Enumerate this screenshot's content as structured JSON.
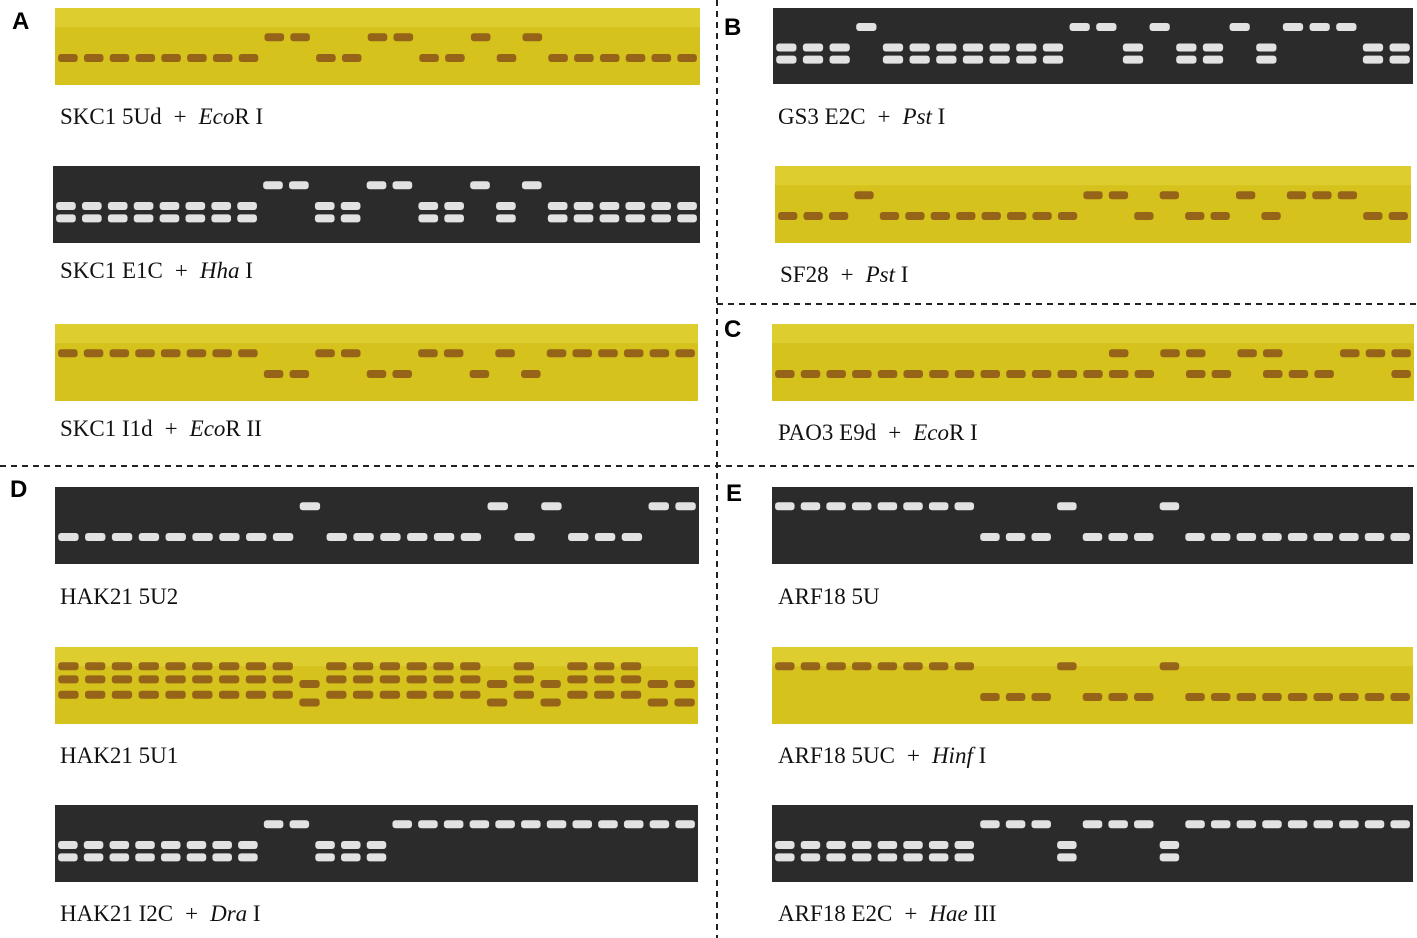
{
  "joiner": "+",
  "panels": [
    {
      "letter": "A",
      "gels": [
        {
          "label": "SKC1 5Ud",
          "enzyme": "Eco",
          "enzyme_suffix": "R I"
        },
        {
          "label": "SKC1 E1C",
          "enzyme": "Hha",
          "enzyme_suffix": " I"
        },
        {
          "label": "SKC1 I1d",
          "enzyme": "Eco",
          "enzyme_suffix": "R II"
        }
      ]
    },
    {
      "letter": "B",
      "gels": [
        {
          "label": "GS3 E2C",
          "enzyme": "Pst",
          "enzyme_suffix": " I"
        },
        {
          "label": "SF28",
          "enzyme": "Pst",
          "enzyme_suffix": " I"
        }
      ]
    },
    {
      "letter": "C",
      "gels": [
        {
          "label": "PAO3 E9d",
          "enzyme": "Eco",
          "enzyme_suffix": "R I"
        }
      ]
    },
    {
      "letter": "D",
      "gels": [
        {
          "label": "HAK21 5U2"
        },
        {
          "label": "HAK21 5U1"
        },
        {
          "label": "HAK21 I2C",
          "enzyme": "Dra",
          "enzyme_suffix": " I"
        }
      ]
    },
    {
      "letter": "E",
      "gels": [
        {
          "label": "ARF18 5U"
        },
        {
          "label": "ARF18 5UC",
          "enzyme": "Hinf",
          "enzyme_suffix": " I"
        },
        {
          "label": "ARF18 E2C",
          "enzyme": "Hae",
          "enzyme_suffix": " III"
        }
      ]
    }
  ]
}
